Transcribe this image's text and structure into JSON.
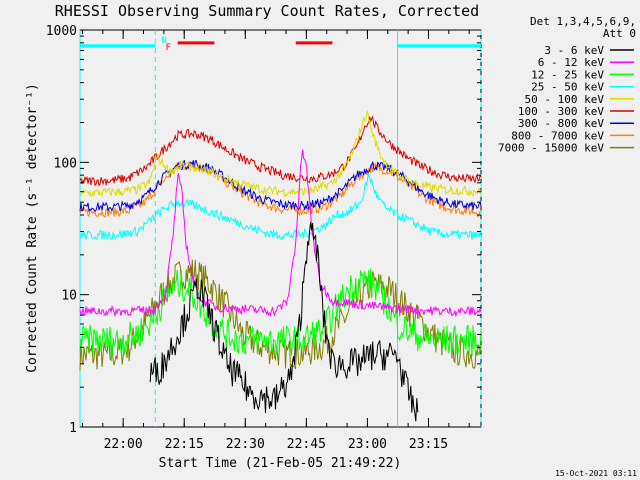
{
  "chart_data": {
    "type": "line",
    "title": "RHESSI Observing Summary Count Rates, Corrected",
    "xlabel": "Start Time (21-Feb-05 21:49:22)",
    "ylabel": "Corrected Count Rate (s⁻¹ detector⁻¹)",
    "yscale": "log",
    "ylim": [
      1,
      1000
    ],
    "xlim": [
      0,
      98.5
    ],
    "x_unit": "minutes since start",
    "x_ticks": [
      {
        "label": "22:00",
        "x": 10.6
      },
      {
        "label": "22:15",
        "x": 25.6
      },
      {
        "label": "22:30",
        "x": 40.6
      },
      {
        "label": "22:45",
        "x": 55.6
      },
      {
        "label": "23:00",
        "x": 70.6
      },
      {
        "label": "23:15",
        "x": 85.6
      }
    ],
    "y_ticks": [
      {
        "label": "1",
        "v": 1
      },
      {
        "label": "10",
        "v": 10
      },
      {
        "label": "100",
        "v": 100
      },
      {
        "label": "1000",
        "v": 1000
      }
    ],
    "legend_title": [
      "Det 1,3,4,5,6,9,",
      "Att 0"
    ],
    "legend_position": "right",
    "series": [
      {
        "name": "3 - 6 keV",
        "color": "#000000",
        "x": [
          0,
          14,
          17,
          20,
          22,
          24,
          26,
          29,
          32,
          36,
          42,
          48,
          52,
          54,
          56,
          58,
          60,
          62,
          65,
          68,
          72,
          75,
          78,
          80,
          83,
          85
        ],
        "values": [
          null,
          null,
          2.5,
          2.8,
          3.8,
          5,
          7,
          12,
          7,
          3,
          1.8,
          1.6,
          2.5,
          6,
          30,
          25,
          6,
          3,
          3,
          3,
          3.5,
          3.5,
          3.5,
          2,
          1.2,
          null
        ]
      },
      {
        "name": "6 - 12 keV",
        "color": "#ff00ff",
        "x": [
          0,
          10,
          18,
          21,
          23,
          24,
          25,
          26,
          28,
          30,
          34,
          40,
          48,
          51,
          53,
          54.5,
          55.5,
          57,
          59,
          62,
          68,
          75,
          80,
          85,
          90,
          98.5
        ],
        "values": [
          7.5,
          7.5,
          7.6,
          10,
          30,
          80,
          60,
          25,
          12,
          9,
          8,
          7.8,
          7.5,
          9,
          25,
          120,
          100,
          30,
          12,
          9,
          8.5,
          8,
          7.8,
          7.6,
          7.5,
          7.5
        ]
      },
      {
        "name": "12 - 25 keV",
        "color": "#00ff00",
        "x": [
          0,
          10,
          14,
          18,
          21,
          24,
          27,
          30,
          33,
          36,
          40,
          45,
          50,
          55,
          60,
          63,
          66,
          69,
          72,
          75,
          78,
          82,
          86,
          90,
          98.5
        ],
        "values": [
          4.5,
          4.5,
          5,
          6.5,
          10,
          12,
          11,
          8,
          6,
          5,
          4.5,
          4.5,
          4.5,
          4.6,
          5.5,
          8,
          11,
          13,
          12,
          9,
          6,
          5,
          4.6,
          4.5,
          4.5
        ]
      },
      {
        "name": "25 - 50 keV",
        "color": "#00ffff",
        "x": [
          0,
          10,
          14,
          18,
          21,
          24,
          27,
          30,
          34,
          38,
          42,
          46,
          50,
          55,
          60,
          63,
          66,
          69,
          71,
          73,
          75,
          78,
          82,
          86,
          90,
          98.5
        ],
        "values": [
          28,
          28.5,
          30,
          38,
          45,
          50,
          48,
          45,
          40,
          36,
          32,
          29,
          28,
          28.5,
          33,
          40,
          42,
          50,
          80,
          55,
          45,
          40,
          35,
          30,
          28.5,
          28
        ]
      },
      {
        "name": "50 - 100 keV",
        "color": "#dddd00",
        "x": [
          0,
          10,
          14,
          17,
          19,
          22,
          25,
          28,
          32,
          36,
          40,
          45,
          50,
          55,
          58,
          62,
          65,
          67,
          69,
          70.5,
          72,
          74,
          77,
          81,
          85,
          90,
          98.5
        ],
        "values": [
          58,
          60,
          62,
          70,
          110,
          85,
          95,
          92,
          85,
          75,
          68,
          62,
          60,
          60,
          62,
          70,
          90,
          120,
          180,
          240,
          160,
          110,
          85,
          72,
          65,
          62,
          60
        ]
      },
      {
        "name": "100 - 300 keV",
        "color": "#dd0000",
        "x": [
          0,
          8,
          12,
          16,
          20,
          24,
          28,
          32,
          36,
          40,
          45,
          50,
          55,
          58,
          62,
          65,
          68,
          70,
          71.5,
          73,
          76,
          80,
          84,
          88,
          92,
          98.5
        ],
        "values": [
          72,
          73,
          76,
          90,
          120,
          160,
          165,
          150,
          125,
          105,
          90,
          80,
          76,
          76,
          82,
          95,
          130,
          190,
          220,
          180,
          140,
          110,
          92,
          82,
          76,
          74
        ]
      },
      {
        "name": "300 - 800 keV",
        "color": "#0000dd",
        "x": [
          0,
          8,
          12,
          16,
          20,
          24,
          28,
          32,
          36,
          40,
          45,
          50,
          55,
          60,
          64,
          68,
          72,
          76,
          80,
          84,
          88,
          92,
          98.5
        ],
        "values": [
          46,
          46,
          47,
          55,
          75,
          95,
          98,
          90,
          75,
          62,
          52,
          48,
          47,
          50,
          60,
          80,
          95,
          90,
          75,
          60,
          52,
          48,
          46
        ]
      },
      {
        "name": "800 - 7000 keV",
        "color": "#ff7f00",
        "x": [
          0,
          8,
          12,
          16,
          20,
          24,
          28,
          32,
          36,
          40,
          45,
          50,
          55,
          60,
          64,
          68,
          72,
          76,
          80,
          84,
          88,
          92,
          98.5
        ],
        "values": [
          42,
          42,
          43,
          50,
          70,
          92,
          95,
          86,
          70,
          58,
          48,
          44,
          43,
          46,
          56,
          76,
          92,
          86,
          70,
          56,
          48,
          44,
          42
        ]
      },
      {
        "name": "7000 - 15000 keV",
        "color": "#7f7f00",
        "x": [
          0,
          8,
          12,
          16,
          20,
          24,
          28,
          32,
          36,
          40,
          45,
          50,
          55,
          60,
          64,
          68,
          72,
          76,
          80,
          84,
          88,
          92,
          98.5
        ],
        "values": [
          3.5,
          3.5,
          4,
          6,
          10,
          14,
          15,
          12,
          8,
          5,
          4,
          3.6,
          3.6,
          4.2,
          6,
          9,
          12,
          11,
          8,
          6,
          4.5,
          3.8,
          3.5
        ]
      }
    ],
    "annotations": [
      {
        "label": "N",
        "x": 20,
        "color": "#00ffff"
      },
      {
        "label": "F",
        "x": 21,
        "color": "#ff0000"
      }
    ],
    "bars": [
      {
        "name": "flare-flag",
        "color": "#ff0000",
        "x0": 24,
        "x1": 33,
        "level": 800
      },
      {
        "name": "flare-flag",
        "color": "#ff0000",
        "x0": 53,
        "x1": 62,
        "level": 800
      },
      {
        "name": "day-flag",
        "color": "#00ffff",
        "x0": 0,
        "x1": 18.5,
        "level": 760
      },
      {
        "name": "day-flag",
        "color": "#00ffff",
        "x0": 78,
        "x1": 98.5,
        "level": 760
      }
    ],
    "vlines": [
      {
        "x": 0,
        "style": "solid",
        "color": "#00ffff"
      },
      {
        "x": 18.5,
        "style": "dashed",
        "color": "#00ffff"
      },
      {
        "x": 78,
        "style": "solid",
        "color": "#00ffff"
      },
      {
        "x": 98.5,
        "style": "dashed",
        "color": "#00ffff"
      }
    ],
    "timestamp": "15-Oct-2021 03:11"
  }
}
